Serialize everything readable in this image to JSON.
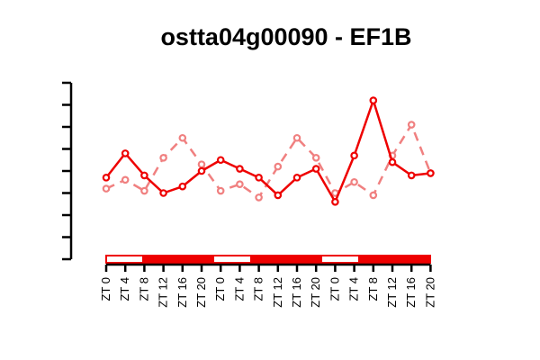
{
  "chart_data": {
    "type": "line",
    "title": "ostta04g00090 - EF1B",
    "xlabel": "",
    "ylabel": "",
    "categories": [
      "ZT 0",
      "ZT 4",
      "ZT 8",
      "ZT 12",
      "ZT 16",
      "ZT 20",
      "ZT 0",
      "ZT 4",
      "ZT 8",
      "ZT 12",
      "ZT 16",
      "ZT 20",
      "ZT 0",
      "ZT 4",
      "ZT 8",
      "ZT 12",
      "ZT 16",
      "ZT 20"
    ],
    "ylim": [
      0,
      8
    ],
    "y_ticks": [
      0,
      1,
      2,
      3,
      4,
      5,
      6,
      7,
      8
    ],
    "y_tick_labels_shown": false,
    "grid": false,
    "series": [
      {
        "style": "solid",
        "color": "#ee0000",
        "values": [
          3.7,
          4.8,
          3.8,
          3.0,
          3.3,
          4.0,
          4.5,
          4.1,
          3.7,
          2.9,
          3.7,
          4.1,
          2.6,
          4.7,
          7.2,
          4.4,
          3.8,
          3.9
        ]
      },
      {
        "style": "dashed",
        "color": "#f08080",
        "values": [
          3.2,
          3.6,
          3.1,
          4.6,
          5.5,
          4.3,
          3.1,
          3.4,
          2.8,
          4.2,
          5.5,
          4.6,
          3.0,
          3.5,
          2.9,
          4.7,
          6.1,
          3.9
        ]
      }
    ],
    "light_bar": {
      "segments": [
        "light",
        "dark",
        "dark",
        "light",
        "dark",
        "dark",
        "light",
        "dark",
        "dark"
      ],
      "light_color": "#ffffff",
      "dark_color": "#ee0000"
    }
  }
}
